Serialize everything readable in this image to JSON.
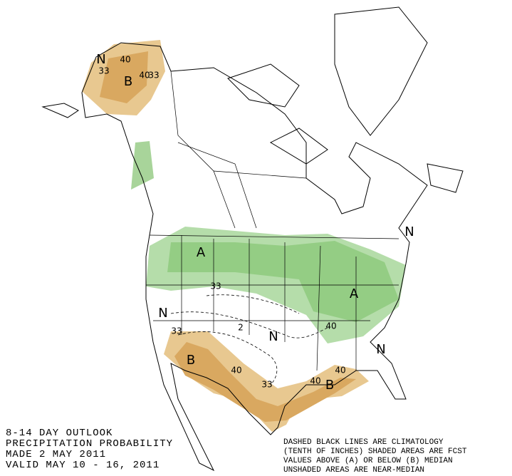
{
  "header": {
    "lines": [
      "8-14 DAY OUTLOOK",
      "PRECIPITATION PROBABILITY",
      "MADE  2 MAY 2011",
      "VALID  MAY 10 - 16, 2011"
    ]
  },
  "legend": {
    "lines": [
      "DASHED BLACK LINES ARE CLIMATOLOGY",
      "(TENTH OF INCHES) SHADED AREAS ARE FCST",
      "VALUES ABOVE (A) OR BELOW (B) MEDIAN",
      "UNSHADED AREAS ARE NEAR-MEDIAN"
    ]
  },
  "map_labels": {
    "category": [
      "N",
      "B",
      "A",
      "A",
      "N",
      "B",
      "N",
      "B",
      "N",
      "N"
    ],
    "probability": [
      "40",
      "33",
      "40",
      "33",
      "33",
      "40",
      "33",
      "40",
      "33",
      "40",
      "40"
    ],
    "climatology": [
      "2"
    ]
  }
}
